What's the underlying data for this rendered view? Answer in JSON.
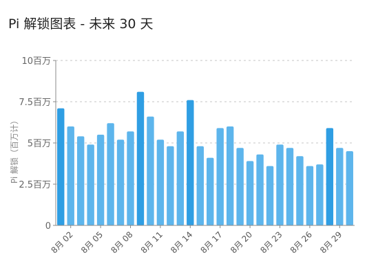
{
  "page": {
    "title": "Pi 解锁图表 - 未来 30 天"
  },
  "chart_data": {
    "type": "bar",
    "title": "Pi 解锁图表 - 未来 30 天",
    "ylabel": "Pi 解锁（百万计）",
    "xlabel": "",
    "ylim": [
      0,
      10
    ],
    "y_ticks": [
      {
        "value": 0,
        "label": "0"
      },
      {
        "value": 2.5,
        "label": "2.5百万"
      },
      {
        "value": 5,
        "label": "5百万"
      },
      {
        "value": 7.5,
        "label": "7.5百万"
      },
      {
        "value": 10,
        "label": "10百万"
      }
    ],
    "x_tick_labels": [
      "8月 02",
      "8月 05",
      "8月 08",
      "8月 11",
      "8月 14",
      "8月 17",
      "8月 20",
      "8月 23",
      "8月 26",
      "8月 29"
    ],
    "x_tick_start_index": 1,
    "x_tick_step": 3,
    "grid": true,
    "bar_color": "#5db5ec",
    "bar_highlight_color": "#2f9ee3",
    "highlighted_indices": [
      0,
      8,
      13,
      27
    ],
    "values": [
      7.1,
      6.0,
      5.4,
      4.9,
      5.5,
      6.2,
      5.2,
      5.7,
      8.1,
      6.6,
      5.2,
      4.8,
      5.7,
      7.6,
      4.8,
      4.1,
      5.9,
      6.0,
      4.7,
      3.9,
      4.3,
      3.6,
      4.9,
      4.7,
      4.2,
      3.6,
      3.7,
      5.9,
      4.7,
      4.5
    ]
  }
}
